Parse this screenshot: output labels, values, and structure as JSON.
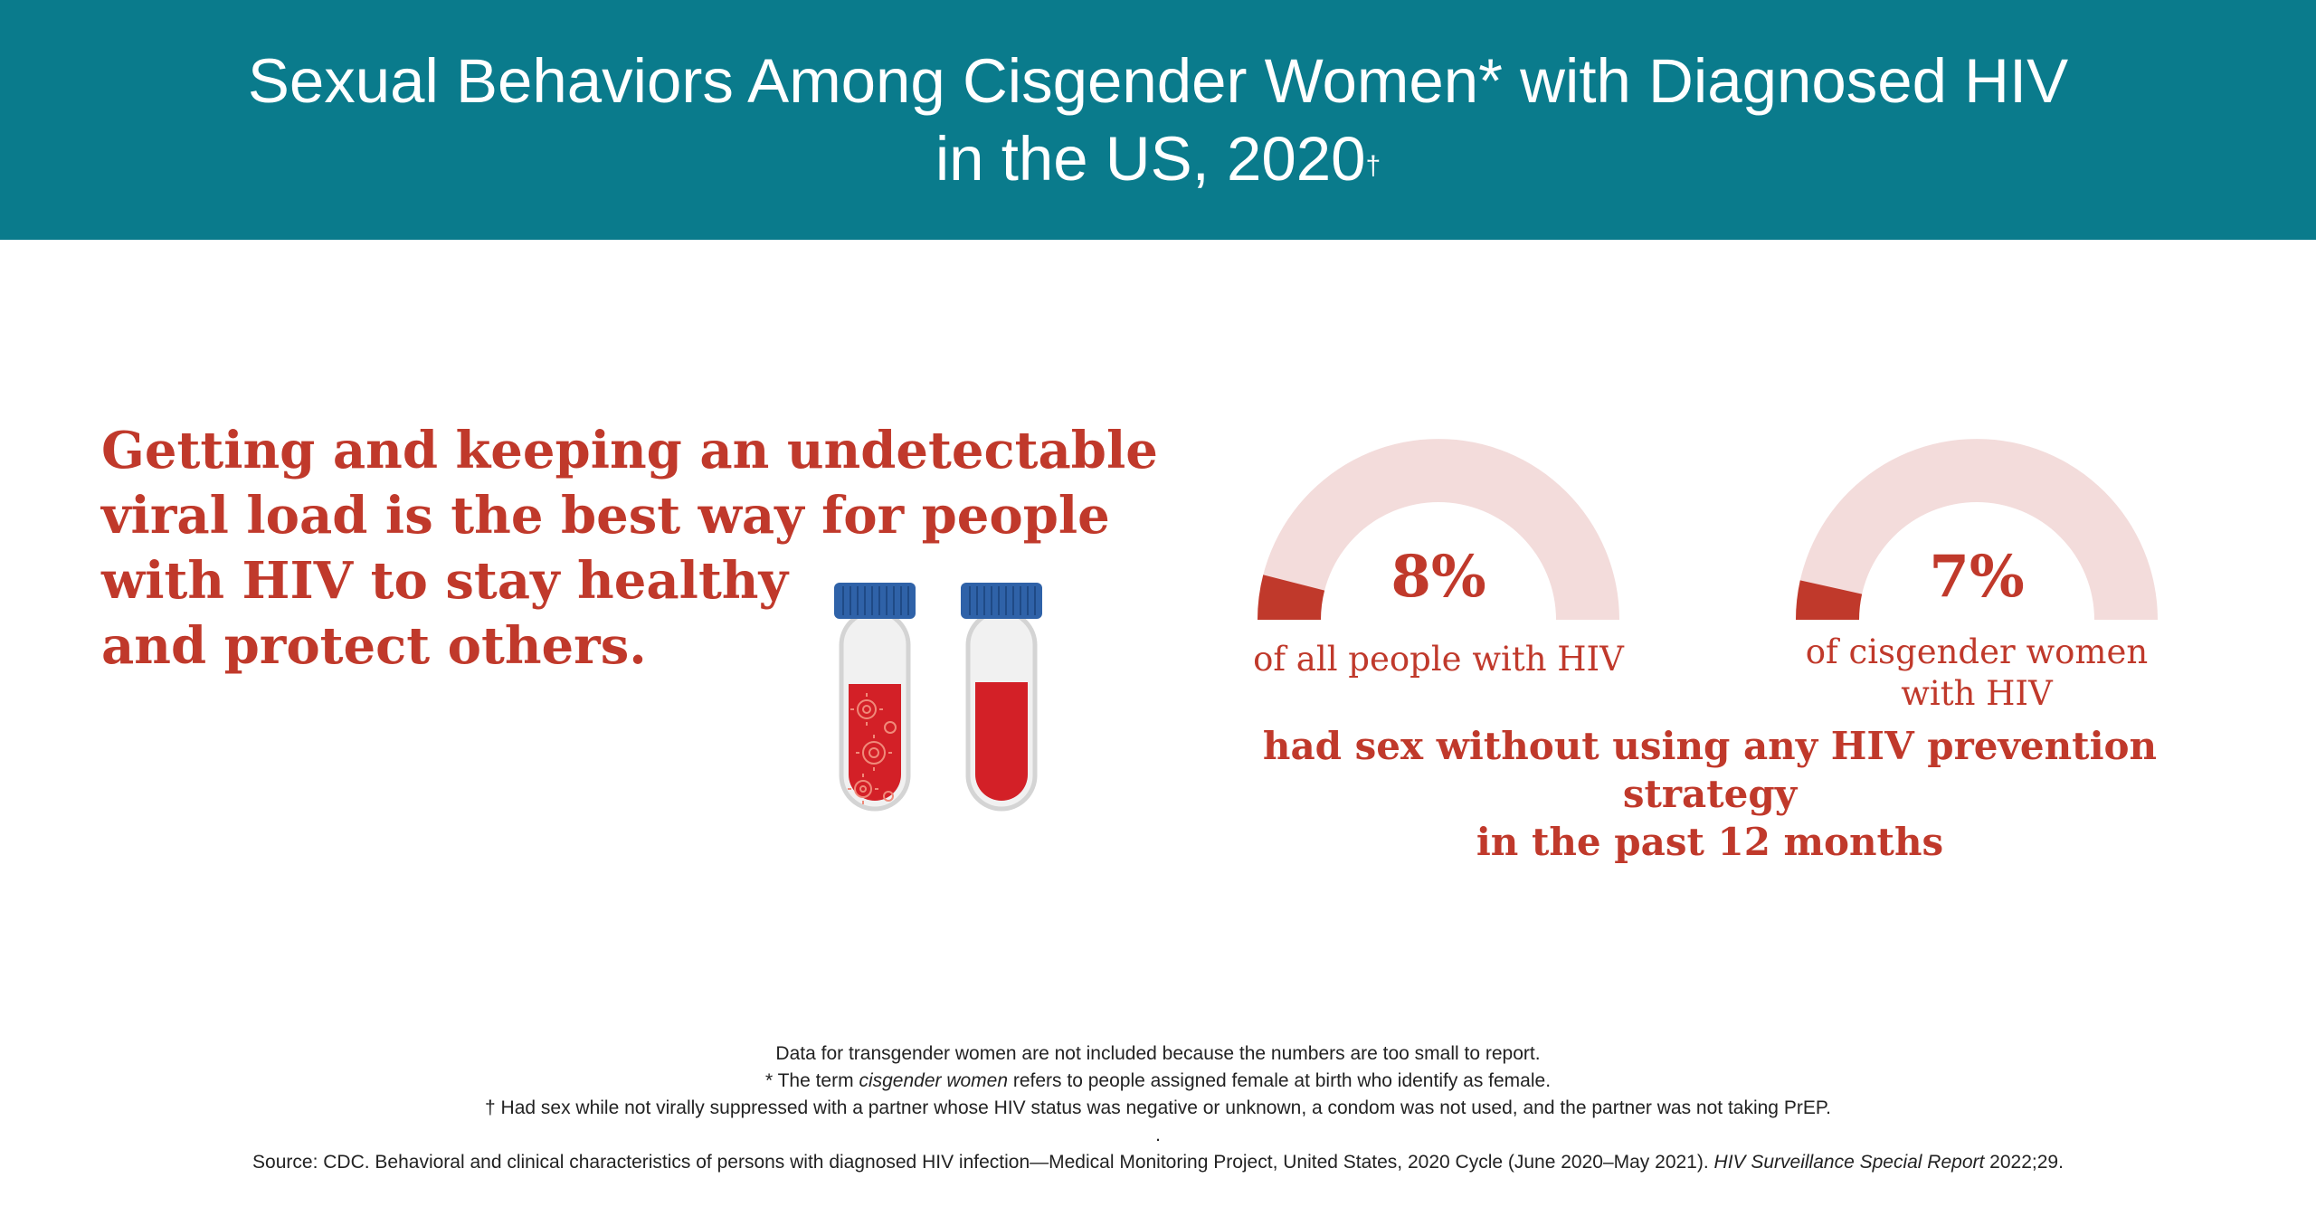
{
  "header": {
    "title_line1": "Sexual Behaviors Among Cisgender Women* with Diagnosed HIV",
    "title_line2": "in the US, 2020",
    "title_mark": "†"
  },
  "headline": {
    "line1": "Getting and keeping an undetectable",
    "line2": "viral load is the best way for people",
    "line3": "with HIV to stay healthy",
    "line4": "and protect others."
  },
  "gauges": [
    {
      "value": "8%",
      "fraction": 0.08,
      "label_line1": "of all people with HIV",
      "label_line2": ""
    },
    {
      "value": "7%",
      "fraction": 0.07,
      "label_line1": "of cisgender women",
      "label_line2": "with HIV"
    }
  ],
  "summary": {
    "line1": "had sex without using any HIV prevention strategy",
    "line2": "in the past 12 months"
  },
  "footnotes": {
    "note1": "Data for transgender women are not included because the numbers are too small to report.",
    "note2_pre": "* The term ",
    "note2_em": "cisgender women",
    "note2_post": " refers to people assigned female at birth who identify as female.",
    "note3": "† Had sex while not virally suppressed with a partner whose HIV status was negative or unknown, a condom was not used, and the partner was not taking PrEP.",
    "dot": ".",
    "source_pre": "Source: CDC. Behavioral and clinical characteristics of persons with diagnosed HIV infection—Medical Monitoring Project, United States, 2020 Cycle (June 2020–May 2021). ",
    "source_em": "HIV Surveillance Special Report",
    "source_post": " 2022;29."
  },
  "colors": {
    "header_bg": "#0a7b8c",
    "accent_red": "#c0392b",
    "gauge_track": "#f3dcdb",
    "cap_blue": "#2f62a8"
  },
  "icons": [
    "test-tube-icon",
    "virus-icon"
  ]
}
